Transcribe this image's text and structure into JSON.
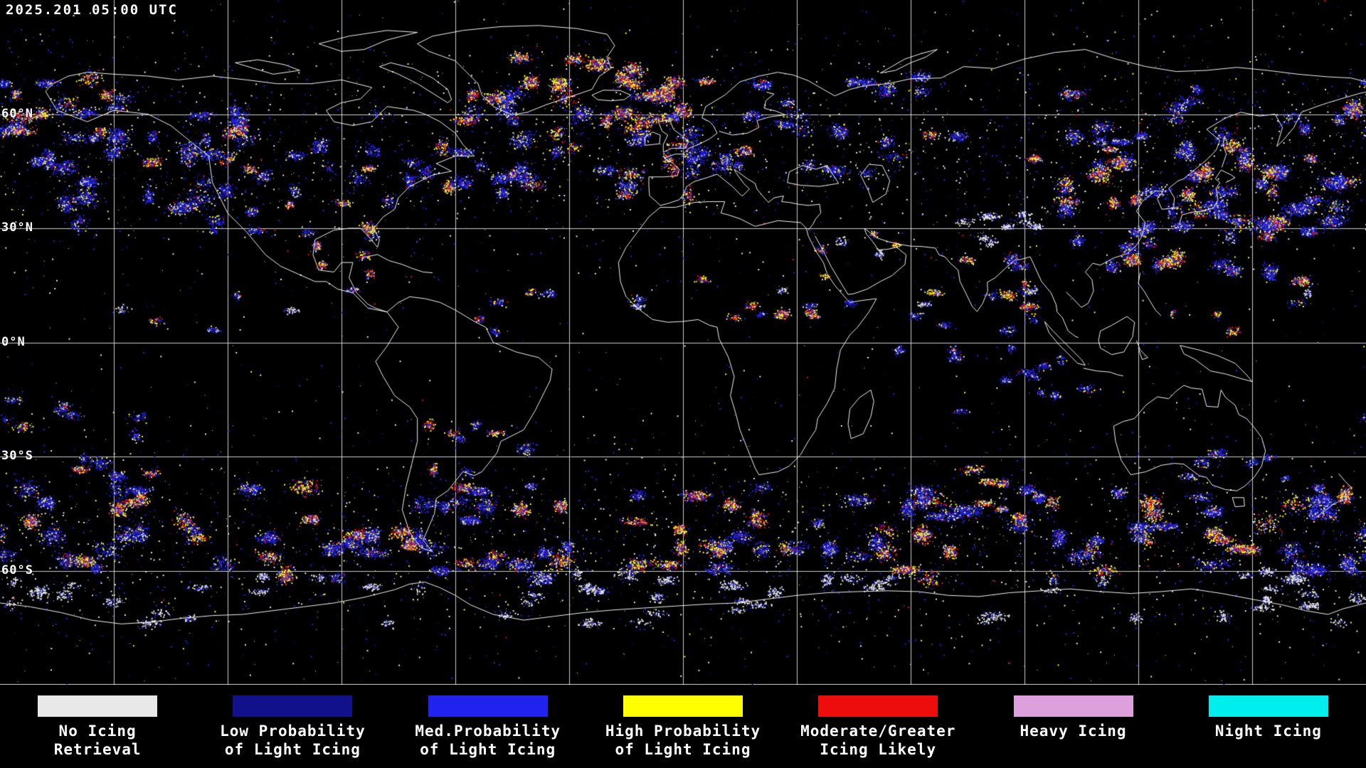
{
  "header": {
    "timestamp": "2025.201 05:00 UTC"
  },
  "map": {
    "background": "#000000",
    "coast_color": "#ffffff",
    "grid": {
      "line_color": "#ffffff",
      "lon_step_deg": 30,
      "lat_step_deg": 30
    },
    "latitude_labels": [
      {
        "label": "60°N",
        "lat": 60
      },
      {
        "label": "30°N",
        "lat": 30
      },
      {
        "label": "0°N",
        "lat": 0
      },
      {
        "label": "30°S",
        "lat": -30
      },
      {
        "label": "60°S",
        "lat": -60
      }
    ]
  },
  "legend": {
    "items": [
      {
        "key": "no-icing-retrieval",
        "color": "#e8e8e8",
        "lines": [
          "No Icing",
          "Retrieval"
        ]
      },
      {
        "key": "low-probability",
        "color": "#11118b",
        "lines": [
          "Low Probability",
          "of Light Icing"
        ]
      },
      {
        "key": "med-probability",
        "color": "#2222ee",
        "lines": [
          "Med.Probability",
          "of Light Icing"
        ]
      },
      {
        "key": "high-probability",
        "color": "#ffff00",
        "lines": [
          "High Probability",
          "of Light Icing"
        ]
      },
      {
        "key": "moderate-greater",
        "color": "#ee0d0d",
        "lines": [
          "Moderate/Greater",
          "Icing Likely"
        ]
      },
      {
        "key": "heavy-icing",
        "color": "#dda0dd",
        "lines": [
          "Heavy Icing"
        ]
      },
      {
        "key": "night-icing",
        "color": "#00eeee",
        "lines": [
          "Night Icing"
        ]
      }
    ]
  }
}
